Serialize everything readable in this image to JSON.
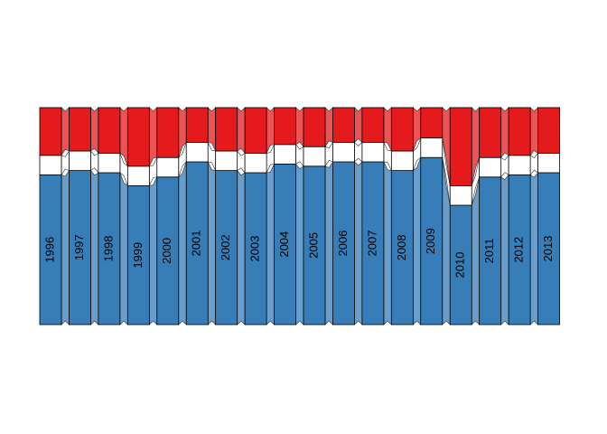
{
  "chart_data": {
    "type": "bar",
    "stacked": true,
    "categories": [
      "1996",
      "1997",
      "1998",
      "1999",
      "2000",
      "2001",
      "2002",
      "2003",
      "2004",
      "2005",
      "2006",
      "2007",
      "2008",
      "2009",
      "2010",
      "2011",
      "2012",
      "2013"
    ],
    "series": [
      {
        "color": "#377eb8",
        "values": [
          69,
          71,
          70,
          64,
          68,
          75,
          71,
          70,
          74,
          73,
          75,
          75,
          71,
          77,
          55,
          68,
          69,
          70
        ]
      },
      {
        "color": "#ffffff",
        "values": [
          9,
          9,
          9,
          9,
          9,
          9,
          9,
          9,
          9,
          9,
          9,
          9,
          9,
          9,
          9,
          9,
          9,
          9
        ]
      },
      {
        "color": "#e41a1c",
        "values": [
          22,
          20,
          21,
          27,
          23,
          16,
          20,
          21,
          17,
          18,
          16,
          16,
          20,
          14,
          36,
          23,
          22,
          21
        ]
      }
    ],
    "ylim": [
      0,
      100
    ]
  }
}
